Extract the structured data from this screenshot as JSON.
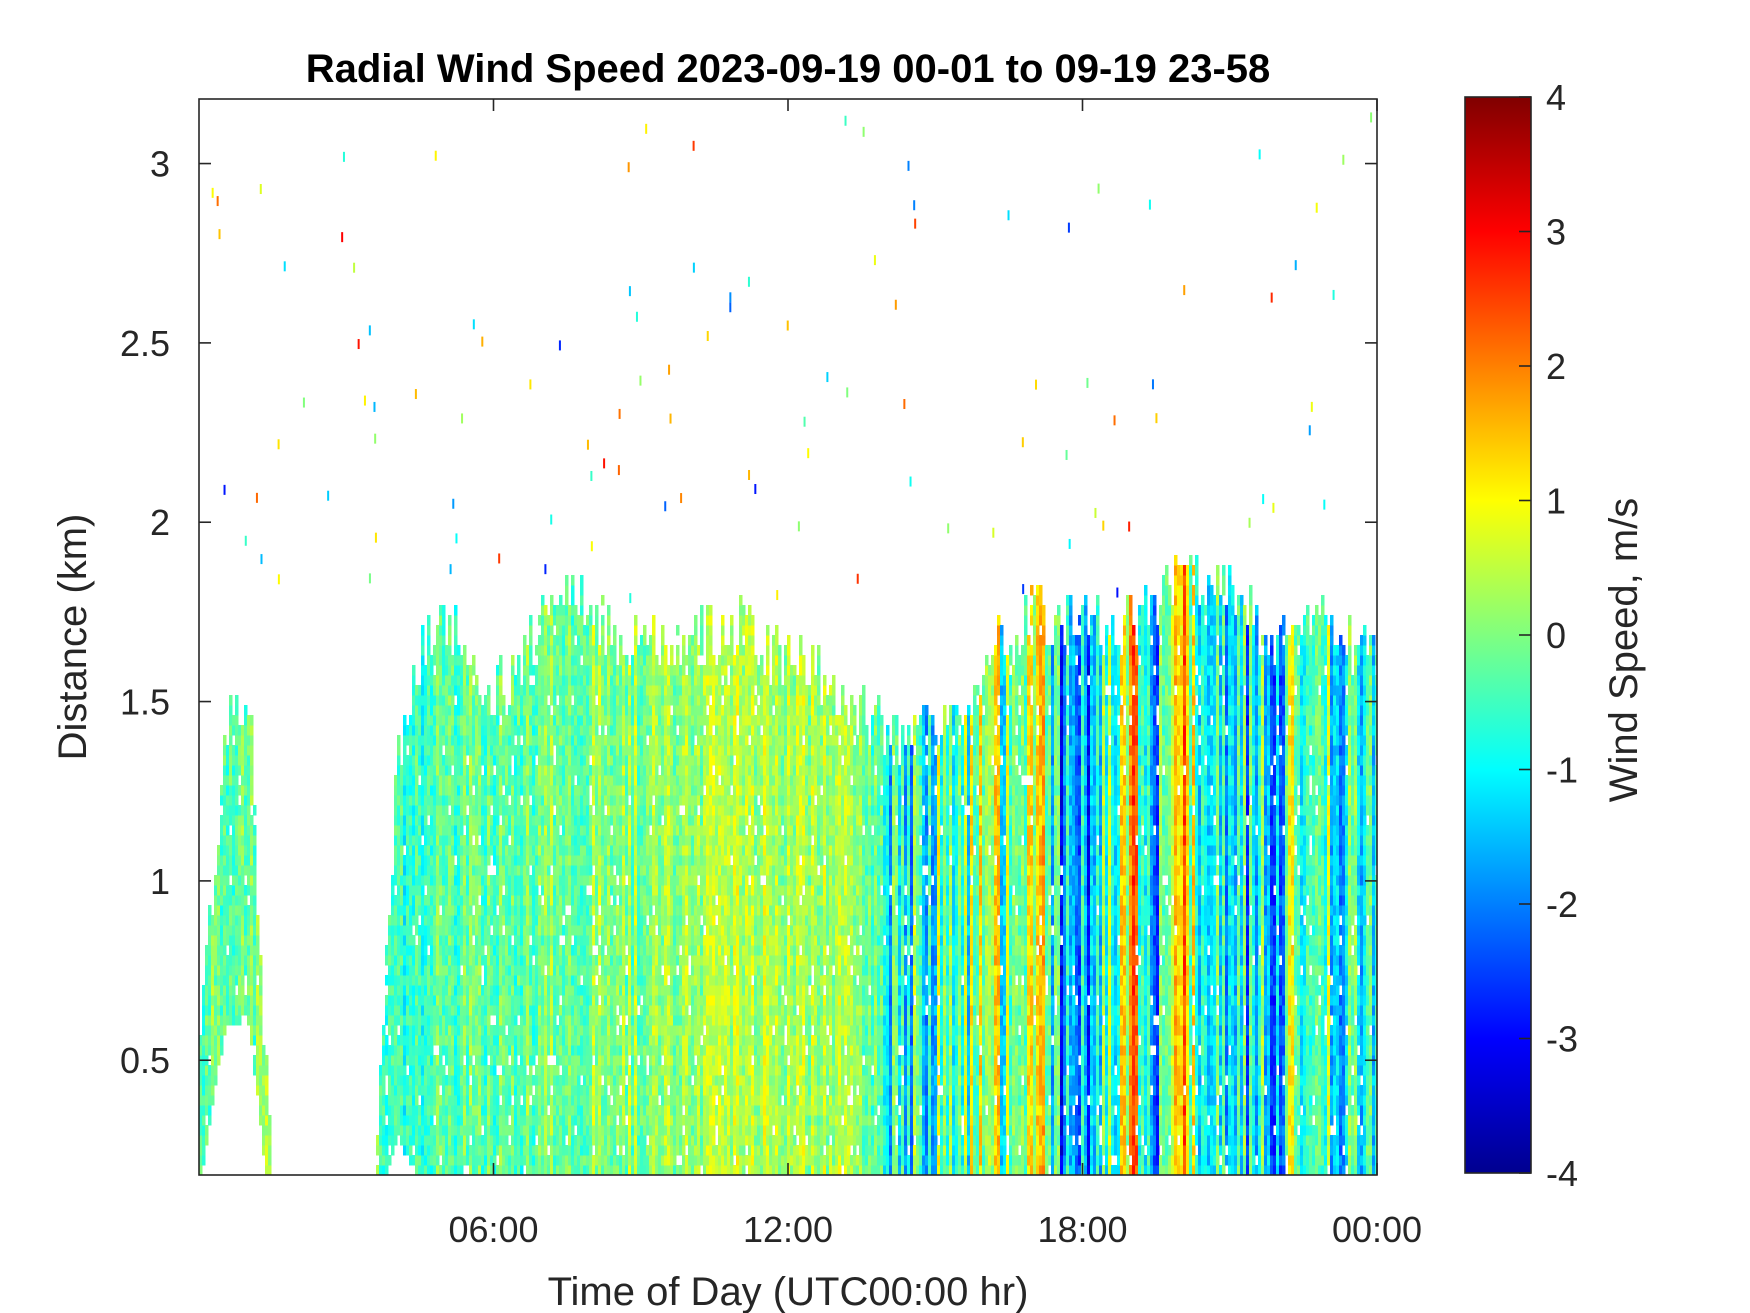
{
  "chart_data": {
    "type": "heatmap",
    "title": "Radial Wind Speed 2023-09-19 00-01 to 09-19 23-58",
    "xlabel": "Time of Day (UTC00:00 hr)",
    "ylabel": "Distance (km)",
    "xlim": [
      0,
      24
    ],
    "ylim": [
      0.18,
      3.18
    ],
    "xticks": [
      {
        "value": 6,
        "label": "06:00"
      },
      {
        "value": 12,
        "label": "12:00"
      },
      {
        "value": 18,
        "label": "18:00"
      },
      {
        "value": 24,
        "label": "00:00"
      }
    ],
    "yticks": [
      {
        "value": 0.5,
        "label": "0.5"
      },
      {
        "value": 1,
        "label": "1"
      },
      {
        "value": 1.5,
        "label": "1.5"
      },
      {
        "value": 2,
        "label": "2"
      },
      {
        "value": 2.5,
        "label": "2.5"
      },
      {
        "value": 3,
        "label": "3"
      }
    ],
    "colorbar": {
      "label": "Wind Speed, m/s",
      "range": [
        -4,
        4
      ],
      "colormap": "jet",
      "ticks": [
        "4",
        "3",
        "2",
        "1",
        "0",
        "-1",
        "-2",
        "-3",
        "-4"
      ]
    },
    "grid": false,
    "data_columns_hours": [
      0,
      0.5,
      1,
      1.5,
      2,
      2.5,
      3,
      3.5,
      4,
      4.5,
      5,
      5.5,
      6,
      6.5,
      7,
      7.5,
      8,
      8.5,
      9,
      9.5,
      10,
      10.5,
      11,
      11.5,
      12,
      12.5,
      13,
      13.5,
      14,
      14.5,
      15,
      15.5,
      16,
      16.5,
      17,
      17.5,
      18,
      18.5,
      19,
      19.5,
      20,
      20.5,
      21,
      21.5,
      22,
      22.5,
      23,
      23.5
    ],
    "echo_top_km": [
      0.55,
      1.45,
      1.5,
      0,
      0,
      0,
      0,
      0,
      1.35,
      1.65,
      1.75,
      1.65,
      1.55,
      1.6,
      1.75,
      1.85,
      1.75,
      1.7,
      1.7,
      1.65,
      1.7,
      1.7,
      1.75,
      1.65,
      1.65,
      1.6,
      1.55,
      1.5,
      1.4,
      1.45,
      1.45,
      1.5,
      1.65,
      1.7,
      1.75,
      1.75,
      1.75,
      1.7,
      1.75,
      1.8,
      1.85,
      1.85,
      1.8,
      1.75,
      1.65,
      1.8,
      1.7,
      1.65
    ],
    "echo_bottom_km": [
      0.18,
      0.6,
      0.6,
      0,
      0,
      0,
      0,
      0,
      0.3,
      0.18,
      0.18,
      0.18,
      0.18,
      0.18,
      0.18,
      0.18,
      0.18,
      0.18,
      0.18,
      0.18,
      0.18,
      0.18,
      0.18,
      0.18,
      0.18,
      0.18,
      0.18,
      0.18,
      0.18,
      0.18,
      0.18,
      0.18,
      0.18,
      0.18,
      0.18,
      0.18,
      0.18,
      0.18,
      0.18,
      0.18,
      0.18,
      0.18,
      0.18,
      0.18,
      0.18,
      0.18,
      0.18,
      0.18
    ],
    "mean_speed_ms": [
      -0.2,
      -0.1,
      0,
      0,
      0,
      0,
      0,
      0,
      -0.6,
      -0.5,
      -0.4,
      -0.3,
      -0.3,
      -0.2,
      -0.1,
      0,
      0.1,
      0.1,
      0.1,
      0.2,
      0.2,
      0.2,
      0.3,
      0.3,
      0.3,
      0.3,
      0.2,
      0,
      -0.5,
      -0.8,
      -0.7,
      -0.2,
      0.8,
      -0.5,
      1.5,
      -1.5,
      -1.8,
      -0.6,
      1.2,
      -1.2,
      2,
      -0.8,
      -0.8,
      -1.2,
      -1.0,
      0.4,
      -0.6,
      -0.8
    ]
  }
}
